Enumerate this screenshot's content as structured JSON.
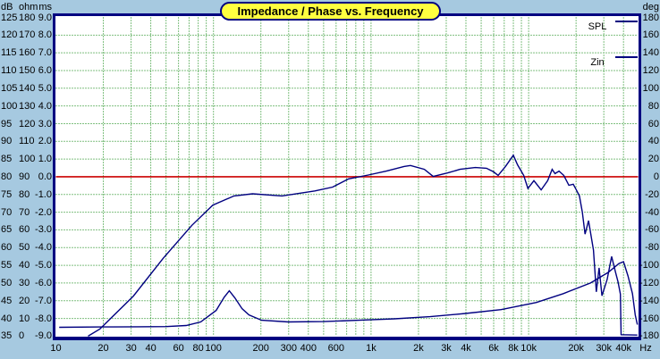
{
  "title": "Impedance / Phase vs. Frequency",
  "colors": {
    "background": "#A6C9E0",
    "plot_background": "#FFFFFF",
    "border": "#000080",
    "grid": "#008000",
    "zero_line": "#CC0000",
    "curve": "#000080",
    "title_fill": "#FFFF40",
    "text": "#000000"
  },
  "legend": [
    {
      "label": "SPL"
    },
    {
      "label": "Zin"
    }
  ],
  "axes": {
    "left": {
      "headers": [
        "dB",
        "ohm",
        "ms"
      ],
      "db_ticks": [
        125,
        120,
        115,
        110,
        105,
        100,
        95,
        90,
        85,
        80,
        75,
        70,
        65,
        60,
        55,
        50,
        45,
        40,
        35
      ],
      "ohm_ticks": [
        180,
        170,
        160,
        150,
        140,
        130,
        120,
        110,
        100,
        90,
        80,
        70,
        60,
        50,
        40,
        30,
        20,
        10,
        0
      ],
      "ms_ticks": [
        "9.0",
        "8.0",
        "7.0",
        "6.0",
        "5.0",
        "4.0",
        "3.0",
        "2.0",
        "1.0",
        "0.0",
        "-1.0",
        "-2.0",
        "-3.0",
        "-4.0",
        "-5.0",
        "-6.0",
        "-7.0",
        "-8.0",
        "-9.0"
      ]
    },
    "right": {
      "header": "deg",
      "deg_ticks": [
        180,
        160,
        140,
        120,
        100,
        80,
        60,
        40,
        20,
        0,
        -20,
        -40,
        -60,
        -80,
        -100,
        -120,
        -140,
        -160,
        -180
      ]
    },
    "x": {
      "unit": "Hz",
      "tick_labels": [
        "10",
        "20",
        "30",
        "40",
        "60",
        "80",
        "100",
        "200",
        "300",
        "400",
        "600",
        "1k",
        "2k",
        "3k",
        "4k",
        "6k",
        "8k",
        "10k",
        "20k",
        "30k",
        "40k"
      ],
      "tick_freqs": [
        10,
        20,
        30,
        40,
        60,
        80,
        100,
        200,
        300,
        400,
        600,
        1000,
        2000,
        3000,
        4000,
        6000,
        8000,
        10000,
        20000,
        30000,
        40000
      ],
      "grid_freqs": [
        20,
        30,
        40,
        50,
        60,
        70,
        80,
        90,
        100,
        200,
        300,
        400,
        500,
        600,
        700,
        800,
        900,
        1000,
        2000,
        3000,
        4000,
        5000,
        6000,
        7000,
        8000,
        9000,
        10000,
        20000,
        30000,
        40000
      ]
    }
  },
  "chart_data": {
    "type": "line",
    "x_scale": "log",
    "x_range_hz": [
      10,
      49500
    ],
    "y_axes": {
      "dB": {
        "range": [
          35,
          125
        ],
        "step": 5
      },
      "ohm": {
        "range": [
          0,
          180
        ],
        "step": 10
      },
      "ms": {
        "range": [
          -9.0,
          9.0
        ],
        "step": 1.0
      },
      "deg": {
        "range": [
          -180,
          180
        ],
        "step": 20
      }
    },
    "zero_line": {
      "value_ms": 0.0,
      "value_dB": 80,
      "color": "#CC0000"
    },
    "grid": "dotted-green",
    "legend_position": "top-right-inside",
    "series": [
      {
        "name": "SPL",
        "scale": "dB",
        "points": [
          [
            16,
            35
          ],
          [
            19,
            37
          ],
          [
            31,
            46.3
          ],
          [
            48,
            57
          ],
          [
            73,
            66.3
          ],
          [
            99,
            72
          ],
          [
            135,
            74.6
          ],
          [
            177,
            75.2
          ],
          [
            272,
            74.6
          ],
          [
            440,
            76
          ],
          [
            570,
            77.1
          ],
          [
            720,
            79.4
          ],
          [
            960,
            80.5
          ],
          [
            1250,
            81.6
          ],
          [
            1620,
            82.9
          ],
          [
            1780,
            83.2
          ],
          [
            2180,
            82.1
          ],
          [
            2480,
            80.1
          ],
          [
            3070,
            81.1
          ],
          [
            3670,
            82.1
          ],
          [
            4590,
            82.6
          ],
          [
            5400,
            82.4
          ],
          [
            5990,
            81.4
          ],
          [
            6400,
            80.4
          ],
          [
            7130,
            82.9
          ],
          [
            8000,
            86.1
          ],
          [
            8500,
            83.4
          ],
          [
            9300,
            80.4
          ],
          [
            9900,
            76.7
          ],
          [
            10800,
            78.9
          ],
          [
            12000,
            76.3
          ],
          [
            13200,
            78.9
          ],
          [
            14100,
            82.1
          ],
          [
            14700,
            80.9
          ],
          [
            15600,
            81.6
          ],
          [
            16700,
            80.4
          ],
          [
            18000,
            77.6
          ],
          [
            19200,
            77.9
          ],
          [
            20000,
            76.4
          ],
          [
            21000,
            74.6
          ],
          [
            21900,
            70.1
          ],
          [
            22800,
            63.8
          ],
          [
            24000,
            67.6
          ],
          [
            25800,
            59.3
          ],
          [
            26900,
            47.5
          ],
          [
            28000,
            54.3
          ],
          [
            29200,
            46.4
          ],
          [
            31500,
            51
          ],
          [
            33600,
            57.5
          ],
          [
            35500,
            53.2
          ],
          [
            36900,
            50.4
          ],
          [
            38200,
            46.9
          ],
          [
            38600,
            35.4
          ],
          [
            49000,
            35.3
          ]
        ]
      },
      {
        "name": "Zin",
        "scale": "ohm",
        "points": [
          [
            10.5,
            5
          ],
          [
            20,
            5.2
          ],
          [
            33,
            5.3
          ],
          [
            50,
            5.4
          ],
          [
            67,
            6
          ],
          [
            83,
            8
          ],
          [
            104,
            14.5
          ],
          [
            117,
            22
          ],
          [
            126,
            25.6
          ],
          [
            137,
            21.5
          ],
          [
            152,
            15.5
          ],
          [
            168,
            12
          ],
          [
            202,
            9
          ],
          [
            298,
            8
          ],
          [
            500,
            8.2
          ],
          [
            840,
            9
          ],
          [
            1410,
            9.8
          ],
          [
            2370,
            11
          ],
          [
            3980,
            12.8
          ],
          [
            6690,
            15
          ],
          [
            11200,
            19
          ],
          [
            16600,
            24
          ],
          [
            24700,
            30
          ],
          [
            32000,
            36
          ],
          [
            37400,
            41
          ],
          [
            40000,
            42
          ],
          [
            42700,
            34
          ],
          [
            45600,
            24
          ],
          [
            47500,
            12
          ],
          [
            49000,
            6.5
          ]
        ]
      }
    ]
  }
}
